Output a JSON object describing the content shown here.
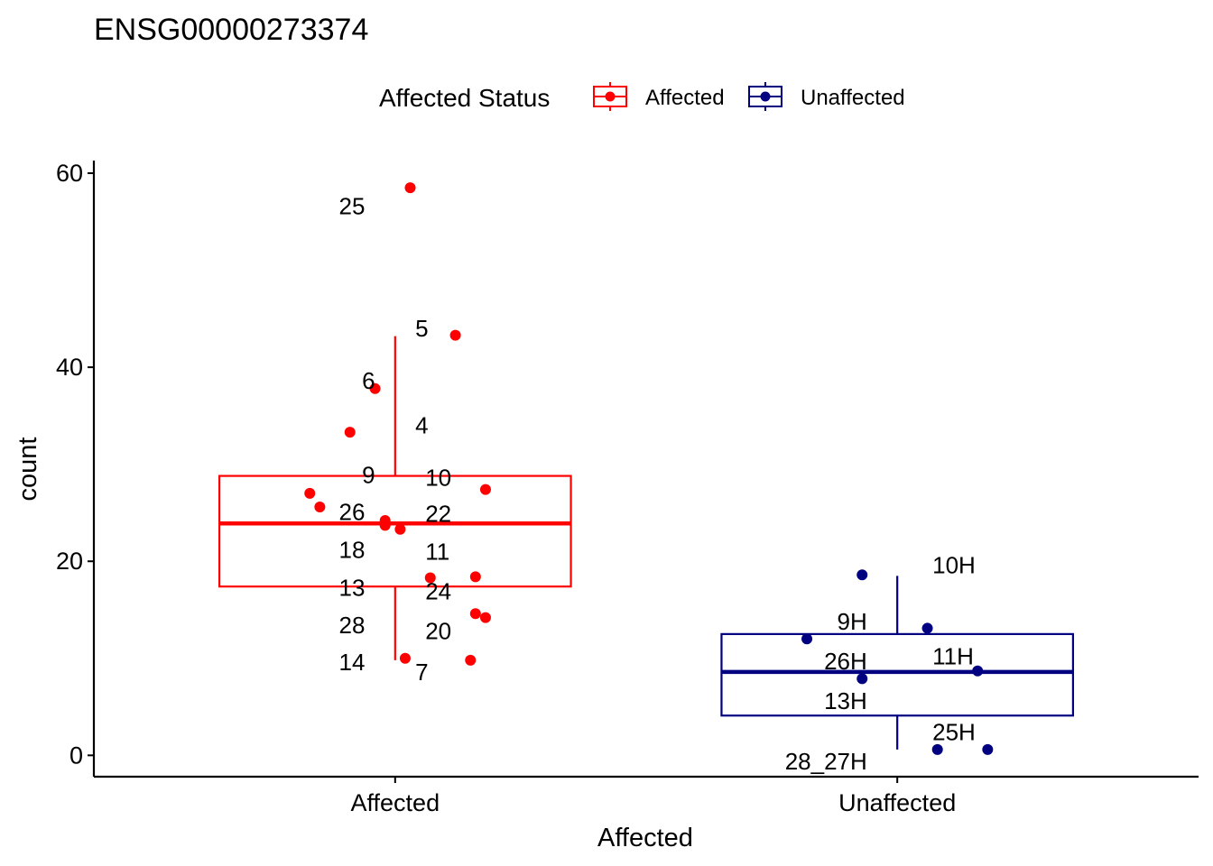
{
  "chart_data": {
    "type": "boxplot",
    "title": "ENSG00000273374",
    "xlabel": "Affected",
    "ylabel": "count",
    "ylim": [
      -2.2,
      61.3
    ],
    "yticks": [
      0,
      20,
      40,
      60
    ],
    "categories": [
      "Affected",
      "Unaffected"
    ],
    "grid": false,
    "legend": {
      "title": "Affected Status",
      "position": "top",
      "entries": [
        {
          "label": "Affected",
          "color": "#ff0000"
        },
        {
          "label": "Unaffected",
          "color": "#000080"
        }
      ]
    },
    "series": [
      {
        "name": "Affected",
        "color": "#ff0000",
        "box": {
          "whisker_low": 9.8,
          "q1": 17.4,
          "median": 23.9,
          "q3": 28.8,
          "whisker_high": 43.2
        },
        "points": [
          {
            "x": 1.03,
            "y": 58.5
          },
          {
            "x": 1.12,
            "y": 43.3
          },
          {
            "x": 0.96,
            "y": 37.8
          },
          {
            "x": 0.91,
            "y": 33.3
          },
          {
            "x": 1.18,
            "y": 27.4
          },
          {
            "x": 0.83,
            "y": 27.0
          },
          {
            "x": 0.85,
            "y": 25.6
          },
          {
            "x": 0.98,
            "y": 24.2
          },
          {
            "x": 0.98,
            "y": 23.7
          },
          {
            "x": 1.01,
            "y": 23.3
          },
          {
            "x": 1.07,
            "y": 18.3
          },
          {
            "x": 1.16,
            "y": 18.4
          },
          {
            "x": 1.16,
            "y": 14.6
          },
          {
            "x": 1.18,
            "y": 14.2
          },
          {
            "x": 1.02,
            "y": 10.0
          },
          {
            "x": 1.15,
            "y": 9.8
          }
        ],
        "labels": [
          {
            "text": "25",
            "x": 0.94,
            "y": 56.6
          },
          {
            "text": "5",
            "x": 1.04,
            "y": 44.0
          },
          {
            "text": "6",
            "x": 0.96,
            "y": 38.6
          },
          {
            "text": "4",
            "x": 1.04,
            "y": 34.0
          },
          {
            "text": "9",
            "x": 0.96,
            "y": 28.9
          },
          {
            "text": "10",
            "x": 1.06,
            "y": 28.6
          },
          {
            "text": "26",
            "x": 0.94,
            "y": 25.1
          },
          {
            "text": "22",
            "x": 1.06,
            "y": 24.9
          },
          {
            "text": "18",
            "x": 0.94,
            "y": 21.2
          },
          {
            "text": "11",
            "x": 1.06,
            "y": 21.0
          },
          {
            "text": "13",
            "x": 0.94,
            "y": 17.3
          },
          {
            "text": "24",
            "x": 1.06,
            "y": 16.9
          },
          {
            "text": "28",
            "x": 0.94,
            "y": 13.4
          },
          {
            "text": "20",
            "x": 1.06,
            "y": 12.8
          },
          {
            "text": "14",
            "x": 0.94,
            "y": 9.6
          },
          {
            "text": "7",
            "x": 1.04,
            "y": 8.6
          }
        ]
      },
      {
        "name": "Unaffected",
        "color": "#000080",
        "box": {
          "whisker_low": 0.6,
          "q1": 4.1,
          "median": 8.6,
          "q3": 12.5,
          "whisker_high": 18.5
        },
        "points": [
          {
            "x": 1.93,
            "y": 18.6
          },
          {
            "x": 2.06,
            "y": 13.1
          },
          {
            "x": 1.82,
            "y": 12.0
          },
          {
            "x": 2.16,
            "y": 8.7
          },
          {
            "x": 1.93,
            "y": 7.9
          },
          {
            "x": 2.08,
            "y": 0.6
          },
          {
            "x": 2.18,
            "y": 0.6
          }
        ],
        "labels": [
          {
            "text": "10H",
            "x": 2.07,
            "y": 19.6
          },
          {
            "text": "9H",
            "x": 1.94,
            "y": 13.8
          },
          {
            "text": "26H",
            "x": 1.94,
            "y": 9.7
          },
          {
            "text": "11H",
            "x": 2.07,
            "y": 10.2
          },
          {
            "text": "13H",
            "x": 1.94,
            "y": 5.6
          },
          {
            "text": "25H",
            "x": 2.07,
            "y": 2.4
          },
          {
            "text": "28_27H",
            "x": 1.94,
            "y": -0.6
          }
        ]
      }
    ]
  }
}
